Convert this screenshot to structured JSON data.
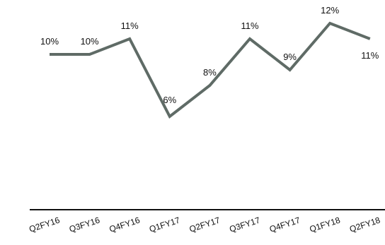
{
  "chart_data": {
    "type": "line",
    "categories": [
      "Q2FY16",
      "Q3FY16",
      "Q4FY16",
      "Q1FY17",
      "Q2FY17",
      "Q3FY17",
      "Q4FY17",
      "Q1FY18",
      "Q2FY18"
    ],
    "series": [
      {
        "values": [
          10,
          10,
          11,
          6,
          8,
          11,
          9,
          12,
          11
        ],
        "data_labels": [
          "10%",
          "10%",
          "11%",
          "6%",
          "8%",
          "11%",
          "9%",
          "12%",
          "11%"
        ]
      }
    ],
    "y_unit": "%",
    "ylim": [
      0,
      12
    ],
    "grid": false,
    "legend": "none",
    "x_tick_rotation": "slanted",
    "line_color": "#5f6b66",
    "axis_color": "#111111"
  }
}
